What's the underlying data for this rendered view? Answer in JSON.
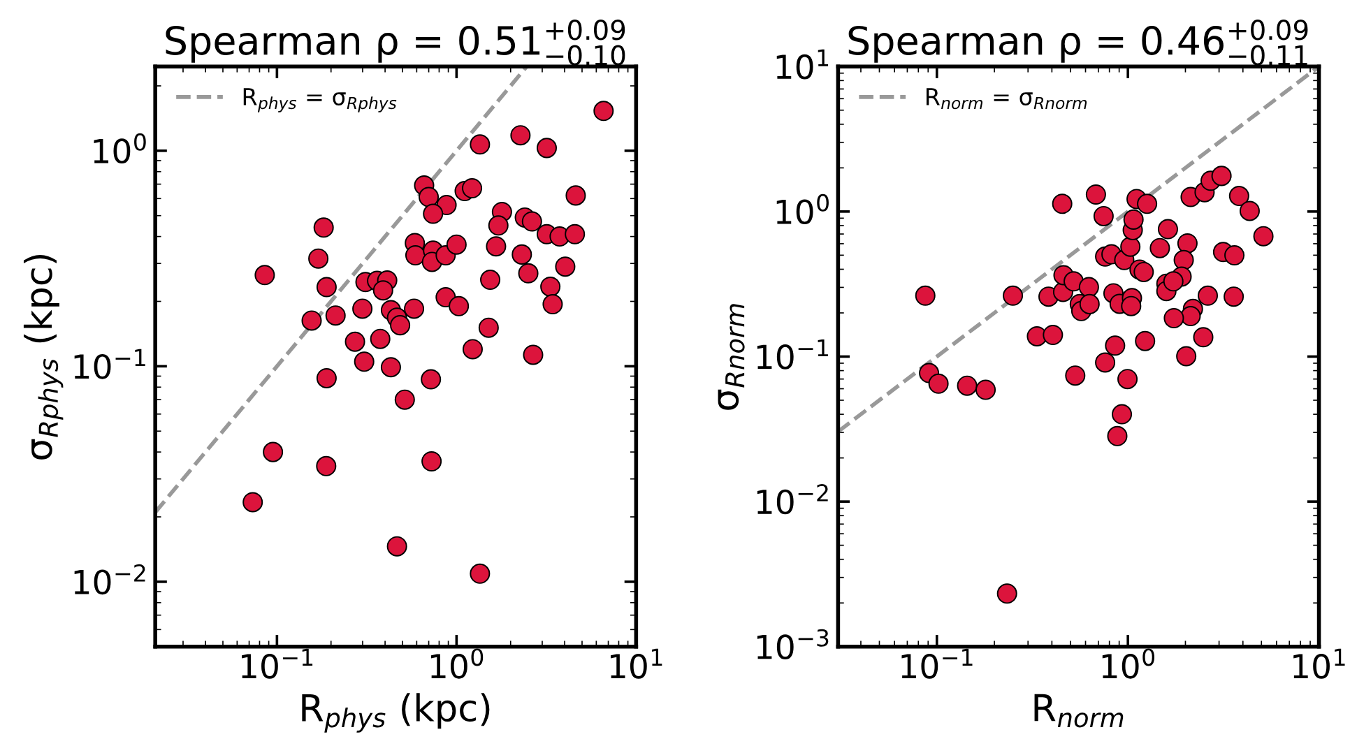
{
  "chart_data": [
    {
      "type": "scatter",
      "title": "Spearman ρ = 0.51$^{+0.09}$$_{−0.10}$",
      "xlabel": "R$_{phys}$ (kpc)",
      "ylabel": "σ$_{Rphys}$ (kpc)",
      "log": "xy",
      "xlim": [
        0.021,
        10
      ],
      "ylim": [
        0.005,
        2.46
      ],
      "xticks": [
        {
          "value": 0.1,
          "label": "10$^{−1}$"
        },
        {
          "value": 1,
          "label": "10$^{0}$"
        },
        {
          "value": 10,
          "label": "10$^{1}$"
        }
      ],
      "yticks": [
        {
          "value": 0.01,
          "label": "10$^{−2}$"
        },
        {
          "value": 0.1,
          "label": "10$^{−1}$"
        },
        {
          "value": 1,
          "label": "10$^{0}$"
        }
      ],
      "legend": "top left",
      "marker": "circle",
      "grid": false,
      "series": [
        {
          "type": "line",
          "name": "R$_{phys}$ = σ$_{Rphys}$",
          "color": "#999999",
          "line_style": "dashed",
          "marker": "none",
          "x": [
            0.021,
            2.46
          ],
          "values": [
            0.021,
            2.46
          ]
        },
        {
          "color": "#dc143c",
          "x": [
            6.59,
            1.35,
            2.27,
            3.18,
            0.66,
            0.7,
            1.11,
            1.22,
            0.88,
            0.74,
            4.61,
            1.79,
            1.71,
            1.66,
            2.4,
            2.63,
            3.18,
            3.75,
            4.56,
            0.182,
            0.17,
            0.189,
            0.0855,
            0.156,
            0.212,
            0.586,
            0.59,
            0.74,
            0.73,
            0.87,
            1.0,
            2.31,
            2.51,
            4.03,
            3.33,
            3.43,
            0.311,
            0.361,
            0.411,
            0.39,
            0.299,
            0.431,
            0.466,
            0.485,
            0.58,
            0.87,
            1.03,
            1.54,
            1.51,
            1.23,
            2.67,
            0.272,
            0.376,
            0.306,
            0.431,
            0.189,
            0.72,
            0.515,
            0.095,
            0.188,
            0.726,
            0.0733,
            0.466,
            1.35
          ],
          "values": [
            1.53,
            1.07,
            1.18,
            1.03,
            0.69,
            0.61,
            0.65,
            0.67,
            0.56,
            0.51,
            0.62,
            0.52,
            0.45,
            0.36,
            0.49,
            0.47,
            0.41,
            0.4,
            0.41,
            0.44,
            0.316,
            0.233,
            0.265,
            0.163,
            0.172,
            0.373,
            0.327,
            0.344,
            0.305,
            0.327,
            0.367,
            0.33,
            0.27,
            0.29,
            0.234,
            0.194,
            0.246,
            0.249,
            0.25,
            0.225,
            0.185,
            0.182,
            0.168,
            0.155,
            0.185,
            0.209,
            0.19,
            0.252,
            0.151,
            0.12,
            0.113,
            0.13,
            0.134,
            0.105,
            0.099,
            0.088,
            0.087,
            0.07,
            0.04,
            0.0344,
            0.0362,
            0.0234,
            0.0146,
            0.0109
          ]
        }
      ]
    },
    {
      "type": "scatter",
      "title": "Spearman ρ = 0.46$^{+0.09}$$_{−0.11}$",
      "xlabel": "R$_{norm}$",
      "ylabel": "σ$_{Rnorm}$",
      "log": "xy",
      "xlim": [
        0.0304,
        10
      ],
      "ylim": [
        0.001,
        10
      ],
      "xticks": [
        {
          "value": 0.1,
          "label": "10$^{−1}$"
        },
        {
          "value": 1,
          "label": "10$^{0}$"
        },
        {
          "value": 10,
          "label": "10$^{1}$"
        }
      ],
      "yticks": [
        {
          "value": 0.001,
          "label": "10$^{−3}$"
        },
        {
          "value": 0.01,
          "label": "10$^{−2}$"
        },
        {
          "value": 0.1,
          "label": "10$^{−1}$"
        },
        {
          "value": 1,
          "label": "10$^{0}$"
        },
        {
          "value": 10,
          "label": "10$^{1}$"
        }
      ],
      "legend": "top left",
      "marker": "circle",
      "grid": false,
      "series": [
        {
          "type": "line",
          "name": "R$_{norm}$ = σ$_{Rnorm}$",
          "color": "#999999",
          "line_style": "dashed",
          "marker": "none",
          "x": [
            0.0304,
            10
          ],
          "values": [
            0.0304,
            10
          ]
        },
        {
          "color": "#dc143c",
          "x": [
            0.087,
            0.25,
            0.384,
            0.458,
            0.46,
            0.52,
            0.625,
            0.56,
            0.57,
            0.63,
            0.334,
            0.405,
            0.453,
            0.68,
            0.746,
            0.76,
            0.82,
            0.957,
            1.03,
            1.06,
            1.07,
            1.11,
            1.26,
            1.15,
            1.21,
            0.84,
            0.905,
            1.05,
            1.04,
            0.857,
            1.23,
            0.76,
            1.47,
            1.62,
            2.05,
            1.96,
            1.91,
            1.59,
            1.59,
            1.73,
            2.19,
            2.13,
            1.74,
            2.62,
            2.48,
            2.02,
            2.13,
            2.52,
            2.71,
            3.09,
            3.82,
            4.34,
            5.12,
            3.15,
            3.61,
            3.58,
            0.091,
            0.102,
            0.144,
            0.18,
            0.53,
            0.995,
            0.93,
            0.88,
            0.233
          ],
          "values": [
            0.263,
            0.263,
            0.259,
            0.279,
            0.364,
            0.33,
            0.301,
            0.23,
            0.206,
            0.23,
            0.138,
            0.141,
            1.13,
            1.31,
            0.93,
            0.489,
            0.507,
            0.463,
            0.572,
            0.745,
            0.88,
            1.22,
            1.13,
            0.398,
            0.383,
            0.273,
            0.231,
            0.253,
            0.223,
            0.119,
            0.128,
            0.091,
            0.56,
            0.756,
            0.603,
            0.463,
            0.356,
            0.318,
            0.283,
            0.33,
            0.213,
            0.19,
            0.184,
            0.263,
            0.136,
            0.1006,
            1.26,
            1.36,
            1.63,
            1.76,
            1.28,
            1.01,
            0.676,
            0.526,
            0.499,
            0.259,
            0.077,
            0.065,
            0.063,
            0.059,
            0.074,
            0.07,
            0.04,
            0.0283,
            0.00232
          ]
        }
      ]
    }
  ]
}
